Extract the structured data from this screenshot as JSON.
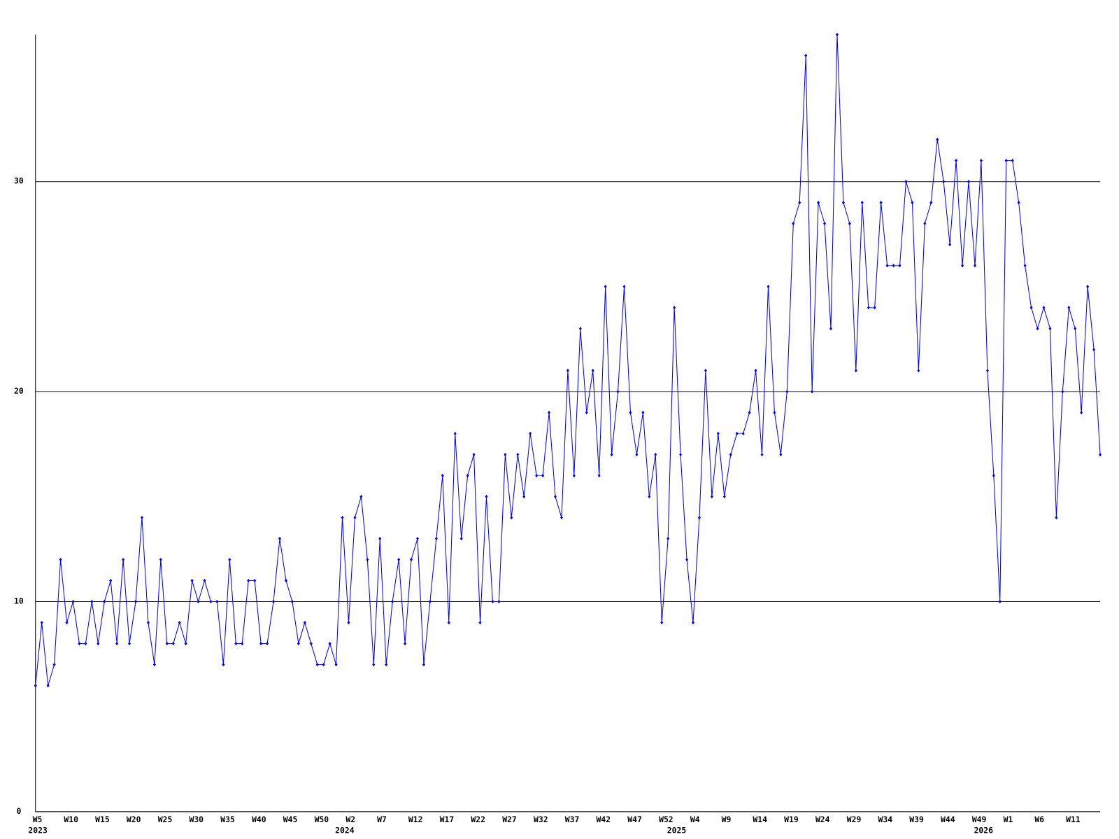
{
  "chart_data": {
    "type": "line",
    "categories": [
      "W5",
      null,
      null,
      null,
      null,
      "W10",
      null,
      null,
      null,
      null,
      "W15",
      null,
      null,
      null,
      null,
      "W20",
      null,
      null,
      null,
      null,
      "W25",
      null,
      null,
      null,
      null,
      "W30",
      null,
      null,
      null,
      null,
      "W35",
      null,
      null,
      null,
      null,
      "W40",
      null,
      null,
      null,
      null,
      "W45",
      null,
      null,
      null,
      null,
      "W50",
      null,
      null,
      null,
      null,
      "W2",
      null,
      null,
      null,
      null,
      "W7",
      null,
      null,
      null,
      null,
      "W12",
      null,
      null,
      null,
      null,
      "W17",
      null,
      null,
      null,
      null,
      "W22",
      null,
      null,
      null,
      null,
      "W27",
      null,
      null,
      null,
      null,
      "W32",
      null,
      null,
      null,
      null,
      "W37",
      null,
      null,
      null,
      null,
      "W42",
      null,
      null,
      null,
      null,
      "W47",
      null,
      null,
      null,
      null,
      "W52",
      null,
      null,
      null,
      null,
      "W4",
      null,
      null,
      null,
      null,
      "W9",
      null,
      null,
      null,
      null,
      "W14",
      null,
      null,
      null,
      null,
      "W19",
      null,
      null,
      null,
      null,
      "W24",
      null,
      null,
      null,
      null,
      "W29",
      null,
      null,
      null,
      null,
      "W34",
      null,
      null,
      null,
      null,
      "W39",
      null,
      null,
      null,
      null,
      "W44",
      null,
      null,
      null,
      null,
      "W49",
      null,
      null,
      null,
      null,
      "W1",
      null,
      null,
      null,
      null,
      "W6",
      null,
      null,
      null,
      null,
      "W11",
      null,
      null,
      null,
      null,
      null
    ],
    "year_labels": [
      "2023",
      null,
      null,
      null,
      null,
      null,
      null,
      null,
      null,
      null,
      null,
      null,
      null,
      null,
      null,
      null,
      null,
      null,
      null,
      null,
      null,
      null,
      null,
      null,
      null,
      null,
      null,
      null,
      null,
      null,
      null,
      null,
      null,
      null,
      null,
      null,
      null,
      null,
      null,
      null,
      null,
      null,
      null,
      null,
      null,
      null,
      null,
      null,
      null,
      "2024",
      null,
      null,
      null,
      null,
      null,
      null,
      null,
      null,
      null,
      null,
      null,
      null,
      null,
      null,
      null,
      null,
      null,
      null,
      null,
      null,
      null,
      null,
      null,
      null,
      null,
      null,
      null,
      null,
      null,
      null,
      null,
      null,
      null,
      null,
      null,
      null,
      null,
      null,
      null,
      null,
      null,
      null,
      null,
      null,
      null,
      null,
      null,
      null,
      null,
      null,
      null,
      null,
      "2025",
      null,
      null,
      null,
      null,
      null,
      null,
      null,
      null,
      null,
      null,
      null,
      null,
      null,
      null,
      null,
      null,
      null,
      null,
      null,
      null,
      null,
      null,
      null,
      null,
      null,
      null,
      null,
      null,
      null,
      null,
      null,
      null,
      null,
      null,
      null,
      null,
      null,
      null,
      null,
      null,
      null,
      null,
      null,
      null,
      null,
      null,
      null,
      null,
      "2026",
      null,
      null,
      null,
      null,
      null,
      null,
      null,
      null,
      null,
      null,
      null,
      null,
      null,
      null,
      null
    ],
    "series": [
      {
        "color": "#0000ff",
        "values": [
          6,
          9,
          6,
          7,
          12,
          9,
          10,
          8,
          8,
          10,
          8,
          10,
          11,
          8,
          12,
          8,
          10,
          14,
          9,
          7,
          12,
          8,
          8,
          9,
          8,
          11,
          10,
          11,
          10,
          10,
          7,
          12,
          8,
          8,
          11,
          11,
          8,
          8,
          10,
          13,
          11,
          10,
          8,
          9,
          8,
          7,
          7,
          8,
          7,
          14,
          9,
          14,
          15,
          12,
          7,
          13,
          7,
          10,
          12,
          8,
          12,
          13,
          7,
          10,
          13,
          16,
          9,
          18,
          13,
          16,
          17,
          9,
          15,
          10,
          10,
          17,
          14,
          17,
          15,
          18,
          16,
          16,
          19,
          15,
          14,
          21,
          16,
          23,
          19,
          21,
          16,
          25,
          17,
          20,
          25,
          19,
          17,
          19,
          15,
          17,
          9,
          13,
          24,
          17,
          12,
          9,
          14,
          21,
          15,
          18,
          15,
          17,
          18,
          18,
          19,
          21,
          17,
          25,
          19,
          17,
          20,
          28,
          29,
          36,
          20,
          29,
          28,
          23,
          37,
          29,
          28,
          21,
          29,
          24,
          24,
          29,
          26,
          26,
          26,
          30,
          29,
          21,
          28,
          29,
          32,
          30,
          27,
          31,
          26,
          30,
          26,
          31,
          21,
          16,
          10,
          31,
          31,
          29,
          26,
          24,
          23,
          24,
          23,
          14,
          20,
          24,
          23,
          19,
          25,
          22,
          17
        ]
      }
    ],
    "ylim": [
      0,
      37
    ],
    "yticks": [
      0,
      10,
      20,
      30
    ],
    "grid": true
  }
}
